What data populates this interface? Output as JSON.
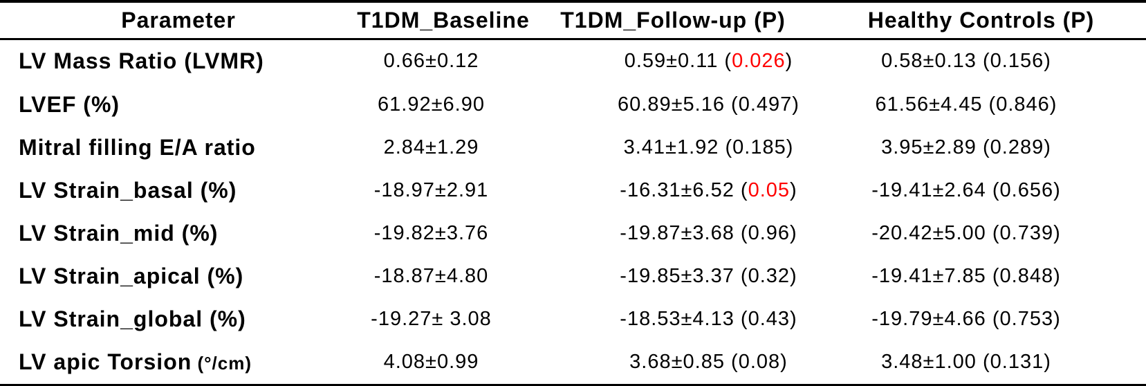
{
  "colors": {
    "text": "#000000",
    "background": "#ffffff",
    "significant_p": "#ff0000"
  },
  "table": {
    "columns": [
      "Parameter",
      "T1DM_Baseline",
      "T1DM_Follow-up (P)",
      "Healthy Controls (P)"
    ],
    "rows": [
      {
        "parameter": "LV Mass Ratio (LVMR)",
        "unit": "",
        "baseline": "0.66±0.12",
        "followup": {
          "value": "0.59±0.11",
          "p": "0.026",
          "significant": true
        },
        "controls": {
          "value": "0.58±0.13",
          "p": "0.156",
          "significant": false
        }
      },
      {
        "parameter": "LVEF (%)",
        "unit": "",
        "baseline": "61.92±6.90",
        "followup": {
          "value": "60.89±5.16",
          "p": "0.497",
          "significant": false
        },
        "controls": {
          "value": "61.56±4.45",
          "p": "0.846",
          "significant": false
        }
      },
      {
        "parameter": "Mitral filling E/A ratio",
        "unit": "",
        "baseline": "2.84±1.29",
        "followup": {
          "value": "3.41±1.92",
          "p": "0.185",
          "significant": false
        },
        "controls": {
          "value": "3.95±2.89",
          "p": "0.289",
          "significant": false
        }
      },
      {
        "parameter": "LV Strain_basal (%)",
        "unit": "",
        "baseline": "-18.97±2.91",
        "followup": {
          "value": "-16.31±6.52",
          "p": "0.05",
          "significant": true
        },
        "controls": {
          "value": "-19.41±2.64",
          "p": "0.656",
          "significant": false
        }
      },
      {
        "parameter": "LV Strain_mid (%)",
        "unit": "",
        "baseline": "-19.82±3.76",
        "followup": {
          "value": "-19.87±3.68",
          "p": "0.96",
          "significant": false
        },
        "controls": {
          "value": "-20.42±5.00",
          "p": "0.739",
          "significant": false
        }
      },
      {
        "parameter": "LV Strain_apical (%)",
        "unit": "",
        "baseline": "-18.87±4.80",
        "followup": {
          "value": "-19.85±3.37",
          "p": "0.32",
          "significant": false
        },
        "controls": {
          "value": "-19.41±7.85",
          "p": "0.848",
          "significant": false
        }
      },
      {
        "parameter": "LV Strain_global (%)",
        "unit": "",
        "baseline": "-19.27± 3.08",
        "followup": {
          "value": "-18.53±4.13",
          "p": "0.43",
          "significant": false
        },
        "controls": {
          "value": "-19.79±4.66",
          "p": "0.753",
          "significant": false
        }
      },
      {
        "parameter": "LV apic Torsion",
        "unit": "(°/cm)",
        "baseline": "4.08±0.99",
        "followup": {
          "value": "3.68±0.85",
          "p": "0.08",
          "significant": false
        },
        "controls": {
          "value": "3.48±1.00",
          "p": "0.131",
          "significant": false
        }
      }
    ]
  }
}
